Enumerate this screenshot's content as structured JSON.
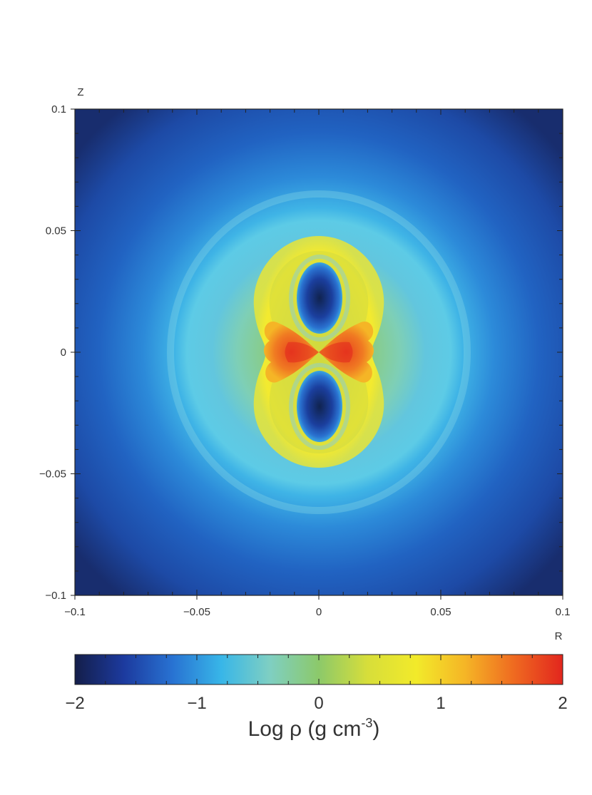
{
  "chart_data": [
    {
      "type": "heatmap",
      "xlabel": "R",
      "ylabel": "Z",
      "xlim": [
        -0.1,
        0.1
      ],
      "ylim": [
        -0.1,
        0.1
      ],
      "x_tick_values": [
        -0.1,
        -0.05,
        0,
        0.05,
        0.1
      ],
      "x_tick_labels": [
        "−0.1",
        "−0.05",
        "0",
        "0.05",
        "0.1"
      ],
      "y_tick_values": [
        0.1,
        0.05,
        0,
        -0.05,
        -0.1
      ],
      "y_tick_labels": [
        "0.1",
        "0.05",
        "0",
        "−0.05",
        "−0.1"
      ],
      "features": [
        {
          "name": "outer envelope",
          "shape": "concentric rings",
          "center": [
            0,
            0
          ],
          "ring_radius": 0.062,
          "log_rho": -0.6
        },
        {
          "name": "dense lobes",
          "shape": "peanut",
          "extent_R": [
            -0.028,
            0.028
          ],
          "extent_Z": [
            -0.048,
            0.048
          ],
          "log_rho": 0.7
        },
        {
          "name": "equatorial jets",
          "shape": "bowtie",
          "extent_R": [
            -0.022,
            0.022
          ],
          "extent_Z": [
            -0.012,
            0.012
          ],
          "log_rho": 1.6
        },
        {
          "name": "polar cavities",
          "shape": "ellipses",
          "centers": [
            [
              0,
              0.025
            ],
            [
              0,
              -0.025
            ]
          ],
          "log_rho": -1.6
        }
      ],
      "grid": false
    },
    {
      "type": "colorbar",
      "label_prefix": "Log  ρ (g cm",
      "label_exponent": "-3",
      "label_suffix": ")",
      "range": [
        -2,
        2
      ],
      "tick_values": [
        -2,
        -1,
        0,
        1,
        2
      ],
      "tick_labels": [
        "−2",
        "−1",
        "0",
        "1",
        "2"
      ],
      "colormap": [
        "#141e4a",
        "#1c3a9e",
        "#2872d2",
        "#38b6e8",
        "#7fcfc2",
        "#8cc96a",
        "#d7de3a",
        "#f2ea2a",
        "#f5b526",
        "#ef6a20",
        "#e2261e"
      ]
    }
  ]
}
